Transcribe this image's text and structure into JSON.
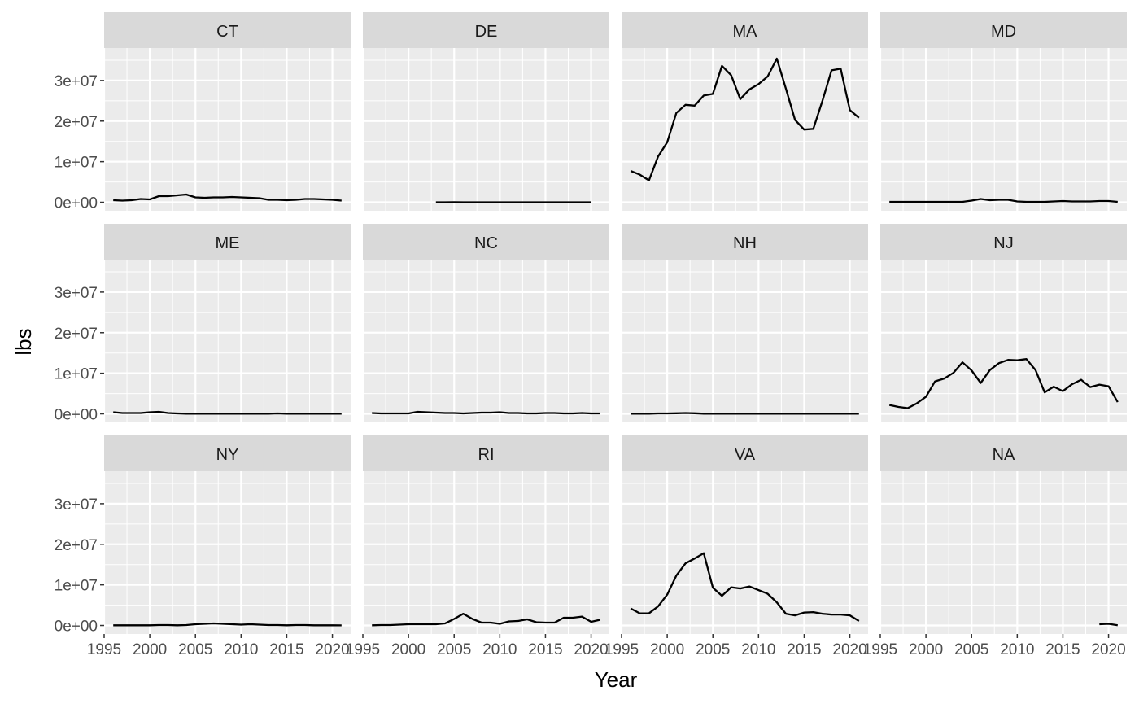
{
  "chart_data": {
    "type": "line",
    "xlabel": "Year",
    "ylabel": "lbs",
    "xlim": [
      1995,
      2022
    ],
    "ylim": [
      0,
      38000000
    ],
    "x_ticks": [
      1995,
      2000,
      2005,
      2010,
      2015,
      2020
    ],
    "x_tick_labels": [
      "1995",
      "2000",
      "2005",
      "2010",
      "2015",
      "2020"
    ],
    "y_ticks": [
      0,
      10000000,
      20000000,
      30000000
    ],
    "y_tick_labels": [
      "0e+00",
      "1e+07",
      "2e+07",
      "3e+07"
    ],
    "grid": true,
    "line_color": "#000000",
    "panel_background": "#ebebeb",
    "strip_background": "#d9d9d9",
    "facets": [
      {
        "name": "CT",
        "x": [
          1996,
          1997,
          1998,
          1999,
          2000,
          2001,
          2002,
          2003,
          2004,
          2005,
          2006,
          2007,
          2008,
          2009,
          2010,
          2011,
          2012,
          2013,
          2014,
          2015,
          2016,
          2017,
          2018,
          2019,
          2020,
          2021
        ],
        "values": [
          500000,
          400000,
          500000,
          800000,
          700000,
          1500000,
          1500000,
          1700000,
          1900000,
          1200000,
          1100000,
          1200000,
          1200000,
          1300000,
          1200000,
          1100000,
          1000000,
          600000,
          600000,
          500000,
          600000,
          800000,
          800000,
          700000,
          600000,
          400000
        ]
      },
      {
        "name": "DE",
        "x": [
          2003,
          2004,
          2005,
          2006,
          2007,
          2008,
          2009,
          2010,
          2011,
          2012,
          2013,
          2014,
          2015,
          2016,
          2017,
          2018,
          2019,
          2020
        ],
        "values": [
          10000,
          10000,
          20000,
          10000,
          10000,
          10000,
          10000,
          10000,
          10000,
          10000,
          10000,
          10000,
          10000,
          10000,
          10000,
          10000,
          10000,
          10000
        ]
      },
      {
        "name": "MA",
        "x": [
          1996,
          1997,
          1998,
          1999,
          2000,
          2001,
          2002,
          2003,
          2004,
          2005,
          2006,
          2007,
          2008,
          2009,
          2010,
          2011,
          2012,
          2013,
          2014,
          2015,
          2016,
          2017,
          2018,
          2019,
          2020,
          2021
        ],
        "values": [
          7700000,
          6800000,
          5400000,
          11300000,
          14800000,
          22000000,
          24000000,
          23800000,
          26300000,
          26700000,
          33600000,
          31300000,
          25400000,
          27800000,
          29100000,
          31000000,
          35400000,
          28000000,
          20300000,
          17900000,
          18100000,
          25000000,
          32500000,
          32900000,
          22700000,
          20800000
        ]
      },
      {
        "name": "MD",
        "x": [
          1996,
          1997,
          1998,
          1999,
          2000,
          2001,
          2002,
          2003,
          2004,
          2005,
          2006,
          2007,
          2008,
          2009,
          2010,
          2011,
          2012,
          2013,
          2014,
          2015,
          2016,
          2017,
          2018,
          2019,
          2020,
          2021
        ],
        "values": [
          100000,
          100000,
          100000,
          100000,
          100000,
          100000,
          100000,
          100000,
          100000,
          400000,
          800000,
          500000,
          600000,
          600000,
          200000,
          100000,
          100000,
          100000,
          200000,
          300000,
          200000,
          200000,
          200000,
          300000,
          300000,
          100000
        ]
      },
      {
        "name": "ME",
        "x": [
          1996,
          1997,
          1998,
          1999,
          2000,
          2001,
          2002,
          2003,
          2004,
          2005,
          2006,
          2007,
          2008,
          2009,
          2010,
          2011,
          2012,
          2013,
          2014,
          2015,
          2016,
          2017,
          2018,
          2019,
          2020,
          2021
        ],
        "values": [
          400000,
          200000,
          200000,
          200000,
          400000,
          500000,
          200000,
          100000,
          50000,
          50000,
          50000,
          50000,
          50000,
          50000,
          50000,
          50000,
          50000,
          50000,
          100000,
          50000,
          50000,
          50000,
          50000,
          50000,
          50000,
          50000
        ]
      },
      {
        "name": "NC",
        "x": [
          1996,
          1997,
          1998,
          1999,
          2000,
          2001,
          2002,
          2003,
          2004,
          2005,
          2006,
          2007,
          2008,
          2009,
          2010,
          2011,
          2012,
          2013,
          2014,
          2015,
          2016,
          2017,
          2018,
          2019,
          2020,
          2021
        ],
        "values": [
          200000,
          100000,
          100000,
          100000,
          100000,
          500000,
          400000,
          300000,
          200000,
          200000,
          100000,
          200000,
          300000,
          300000,
          400000,
          200000,
          200000,
          100000,
          100000,
          200000,
          200000,
          100000,
          100000,
          200000,
          100000,
          100000
        ]
      },
      {
        "name": "NH",
        "x": [
          1996,
          1997,
          1998,
          1999,
          2000,
          2001,
          2002,
          2003,
          2004,
          2005,
          2006,
          2007,
          2008,
          2009,
          2010,
          2011,
          2012,
          2013,
          2014,
          2015,
          2016,
          2017,
          2018,
          2019,
          2020,
          2021
        ],
        "values": [
          50000,
          50000,
          50000,
          100000,
          100000,
          150000,
          200000,
          150000,
          50000,
          20000,
          20000,
          20000,
          20000,
          20000,
          20000,
          20000,
          20000,
          20000,
          20000,
          20000,
          20000,
          20000,
          20000,
          20000,
          20000,
          20000
        ]
      },
      {
        "name": "NJ",
        "x": [
          1996,
          1997,
          1998,
          1999,
          2000,
          2001,
          2002,
          2003,
          2004,
          2005,
          2006,
          2007,
          2008,
          2009,
          2010,
          2011,
          2012,
          2013,
          2014,
          2015,
          2016,
          2017,
          2018,
          2019,
          2020,
          2021
        ],
        "values": [
          2200000,
          1700000,
          1400000,
          2600000,
          4200000,
          8000000,
          8700000,
          10100000,
          12700000,
          10700000,
          7600000,
          10800000,
          12500000,
          13300000,
          13200000,
          13500000,
          10800000,
          5300000,
          6700000,
          5600000,
          7300000,
          8400000,
          6600000,
          7200000,
          6800000,
          2900000
        ]
      },
      {
        "name": "NY",
        "x": [
          1996,
          1997,
          1998,
          1999,
          2000,
          2001,
          2002,
          2003,
          2004,
          2005,
          2006,
          2007,
          2008,
          2009,
          2010,
          2011,
          2012,
          2013,
          2014,
          2015,
          2016,
          2017,
          2018,
          2019,
          2020,
          2021
        ],
        "values": [
          50000,
          50000,
          50000,
          50000,
          50000,
          100000,
          100000,
          50000,
          100000,
          300000,
          400000,
          500000,
          400000,
          300000,
          200000,
          300000,
          200000,
          100000,
          100000,
          50000,
          100000,
          100000,
          50000,
          50000,
          50000,
          20000
        ]
      },
      {
        "name": "RI",
        "x": [
          1996,
          1997,
          1998,
          1999,
          2000,
          2001,
          2002,
          2003,
          2004,
          2005,
          2006,
          2007,
          2008,
          2009,
          2010,
          2011,
          2012,
          2013,
          2014,
          2015,
          2016,
          2017,
          2018,
          2019,
          2020,
          2021
        ],
        "values": [
          50000,
          100000,
          100000,
          200000,
          300000,
          300000,
          300000,
          300000,
          500000,
          1600000,
          2900000,
          1600000,
          700000,
          700000,
          400000,
          1000000,
          1100000,
          1500000,
          800000,
          700000,
          700000,
          1900000,
          1900000,
          2200000,
          900000,
          1400000
        ]
      },
      {
        "name": "VA",
        "x": [
          1996,
          1997,
          1998,
          1999,
          2000,
          2001,
          2002,
          2003,
          2004,
          2005,
          2006,
          2007,
          2008,
          2009,
          2010,
          2011,
          2012,
          2013,
          2014,
          2015,
          2016,
          2017,
          2018,
          2019,
          2020,
          2021
        ],
        "values": [
          4200000,
          3000000,
          3000000,
          4700000,
          7600000,
          12300000,
          15300000,
          16500000,
          17800000,
          9300000,
          7300000,
          9400000,
          9100000,
          9600000,
          8700000,
          7800000,
          5700000,
          2900000,
          2500000,
          3200000,
          3300000,
          2900000,
          2700000,
          2700000,
          2500000,
          1100000
        ]
      },
      {
        "name": "NA",
        "x": [
          2019,
          2020,
          2021
        ],
        "values": [
          300000,
          400000,
          50000
        ]
      }
    ]
  }
}
